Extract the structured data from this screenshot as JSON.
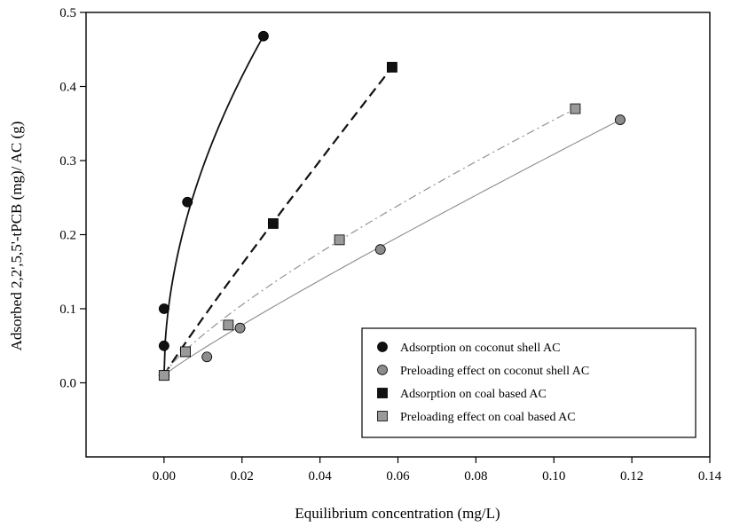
{
  "chart_data": {
    "type": "scatter",
    "title": "",
    "xlabel": "Equilibrium concentration (mg/L)",
    "ylabel": "Adsorbed 2,2',5,5'-tPCB (mg)/ AC (g)",
    "xlim": [
      -0.02,
      0.14
    ],
    "ylim": [
      -0.1,
      0.5
    ],
    "x_ticks": [
      "0.00",
      "0.02",
      "0.04",
      "0.06",
      "0.08",
      "0.10",
      "0.12",
      "0.14"
    ],
    "y_ticks": [
      "0.0",
      "0.1",
      "0.2",
      "0.3",
      "0.4",
      "0.5"
    ],
    "grid": false,
    "legend_position": "bottom-right",
    "series": [
      {
        "name": "Adsorption on coconut shell AC",
        "marker": "circle",
        "color": "#111111",
        "line_style": "solid",
        "x": [
          0.0,
          0.0,
          0.0,
          0.006,
          0.0255
        ],
        "y": [
          0.01,
          0.05,
          0.1,
          0.244,
          0.468
        ],
        "fit_exponent": 0.52
      },
      {
        "name": "Preloading effect on coconut shell AC",
        "marker": "circle",
        "color": "#8c8c8c",
        "line_style": "solid-thin",
        "x": [
          0.0,
          0.011,
          0.0195,
          0.0555,
          0.117
        ],
        "y": [
          0.01,
          0.035,
          0.074,
          0.18,
          0.355
        ],
        "fit_exponent": 0.92
      },
      {
        "name": "Adsorption on coal based AC",
        "marker": "square",
        "color": "#111111",
        "line_style": "long-dash",
        "x": [
          0.0,
          0.0055,
          0.028,
          0.0585
        ],
        "y": [
          0.01,
          0.042,
          0.215,
          0.426
        ],
        "fit_exponent": 0.95
      },
      {
        "name": "Preloading effect on coal based AC",
        "marker": "square",
        "color": "#9a9a9a",
        "line_style": "dash-dot",
        "x": [
          0.0,
          0.0055,
          0.0165,
          0.045,
          0.1055
        ],
        "y": [
          0.01,
          0.042,
          0.078,
          0.193,
          0.37
        ],
        "fit_exponent": 0.8
      }
    ]
  }
}
